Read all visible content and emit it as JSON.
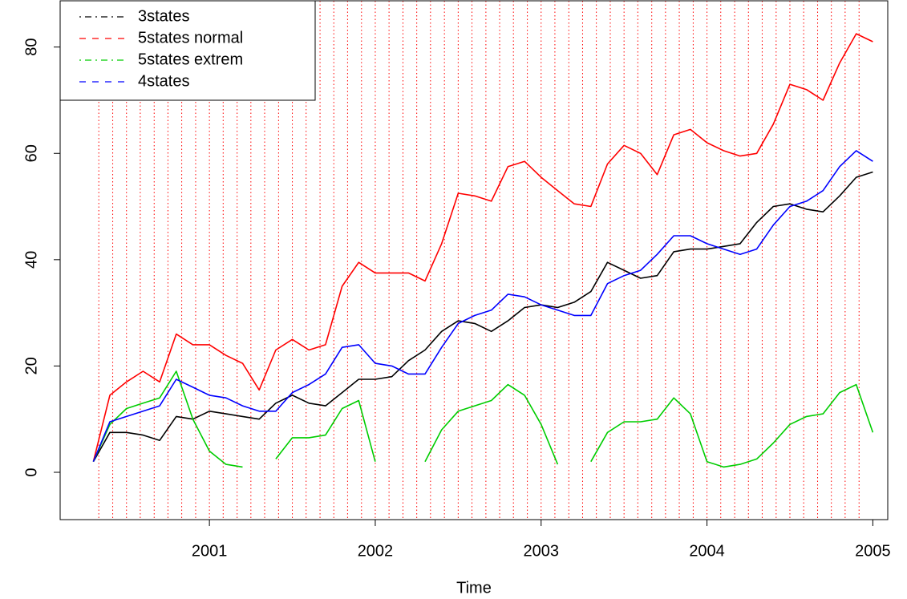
{
  "chart_data": {
    "type": "line",
    "x_label": "Time",
    "x": [
      2000.3,
      2000.4,
      2000.5,
      2000.6,
      2000.7,
      2000.8,
      2000.9,
      2001.0,
      2001.1,
      2001.2,
      2001.3,
      2001.4,
      2001.5,
      2001.6,
      2001.7,
      2001.8,
      2001.9,
      2002.0,
      2002.1,
      2002.2,
      2002.3,
      2002.4,
      2002.5,
      2002.6,
      2002.7,
      2002.8,
      2002.9,
      2003.0,
      2003.1,
      2003.2,
      2003.3,
      2003.4,
      2003.5,
      2003.6,
      2003.7,
      2003.8,
      2003.9,
      2004.0,
      2004.1,
      2004.2,
      2004.3,
      2004.4,
      2004.5,
      2004.6,
      2004.7,
      2004.8,
      2004.9,
      2005.0
    ],
    "series": [
      {
        "name": "3states",
        "color": "#000000",
        "linestyle": "dotdash",
        "values": [
          2,
          7.5,
          7.5,
          7,
          6,
          10.5,
          10,
          11.5,
          11,
          10.5,
          10,
          13,
          14.5,
          13,
          12.5,
          15,
          17.5,
          17.5,
          18,
          21,
          23,
          26.5,
          28.5,
          28,
          26.5,
          28.5,
          31,
          31.5,
          31,
          32,
          34,
          39.5,
          38,
          36.5,
          37,
          41.5,
          42,
          42,
          42.5,
          43,
          47,
          50,
          50.5,
          49.5,
          49,
          52,
          55.5,
          56.5
        ]
      },
      {
        "name": "5states normal",
        "color": "#ff0000",
        "linestyle": "dashed",
        "values": [
          2,
          14.5,
          17,
          19,
          17,
          26,
          24,
          24,
          22,
          20.5,
          15.5,
          23,
          25,
          23,
          24,
          35,
          39.5,
          37.5,
          37.5,
          37.5,
          36,
          43,
          52.5,
          52,
          51,
          57.5,
          58.5,
          55.5,
          53,
          50.5,
          50,
          58,
          61.5,
          60,
          56,
          63.5,
          64.5,
          62,
          60.5,
          59.5,
          60,
          65.5,
          73,
          72,
          70,
          77,
          82.5,
          81
        ]
      },
      {
        "name": "5states extrem",
        "color": "#00cd00",
        "linestyle": "dotdash",
        "values": [
          2,
          9,
          12,
          13,
          14,
          19,
          10,
          4,
          1.5,
          1,
          null,
          2.5,
          6.5,
          6.5,
          7,
          12,
          13.5,
          2,
          null,
          null,
          2,
          8,
          11.5,
          12.5,
          13.5,
          16.5,
          14.5,
          9,
          1.5,
          null,
          2,
          7.5,
          9.5,
          9.5,
          10,
          14,
          11,
          2,
          1,
          1.5,
          2.5,
          5.5,
          9,
          10.5,
          11,
          15,
          16.5,
          7.5
        ]
      },
      {
        "name": "4states",
        "color": "#0000ff",
        "linestyle": "dashed",
        "values": [
          2,
          9.5,
          10.5,
          11.5,
          12.5,
          17.5,
          16,
          14.5,
          14,
          12.5,
          11.5,
          11.5,
          15,
          16.5,
          18.5,
          23.5,
          24,
          20.5,
          20,
          18.5,
          18.5,
          23.5,
          28,
          29.5,
          30.5,
          33.5,
          33,
          31.5,
          30.5,
          29.5,
          29.5,
          35.5,
          37,
          38,
          41,
          44.5,
          44.5,
          43,
          42,
          41,
          42,
          46.5,
          50,
          51,
          53,
          57.5,
          60.5,
          58.5
        ]
      }
    ],
    "xlim": [
      2000.1,
      2005.09
    ],
    "xticks": [
      2001,
      2002,
      2003,
      2004,
      2005
    ],
    "ylim": [
      -8.9,
      88.7
    ],
    "yticks": [
      0,
      20,
      40,
      60,
      80
    ],
    "vlines": [
      2000.333,
      2000.417,
      2000.5,
      2000.583,
      2000.667,
      2000.75,
      2000.833,
      2000.917,
      2001.0,
      2001.083,
      2001.167,
      2001.25,
      2001.333,
      2001.417,
      2001.5,
      2001.583,
      2001.667,
      2001.75,
      2001.833,
      2001.917,
      2002.0,
      2002.083,
      2002.167,
      2002.25,
      2002.333,
      2002.417,
      2002.5,
      2002.583,
      2002.667,
      2002.75,
      2002.833,
      2002.917,
      2003.0,
      2003.083,
      2003.167,
      2003.25,
      2003.333,
      2003.417,
      2003.5,
      2003.583,
      2003.667,
      2003.75,
      2003.833,
      2003.917,
      2004.0,
      2004.083,
      2004.167,
      2004.25,
      2004.333,
      2004.417,
      2004.5,
      2004.583,
      2004.667,
      2004.75,
      2004.833,
      2004.917
    ],
    "vline_color": "#ff0000",
    "legend": "top-left"
  }
}
